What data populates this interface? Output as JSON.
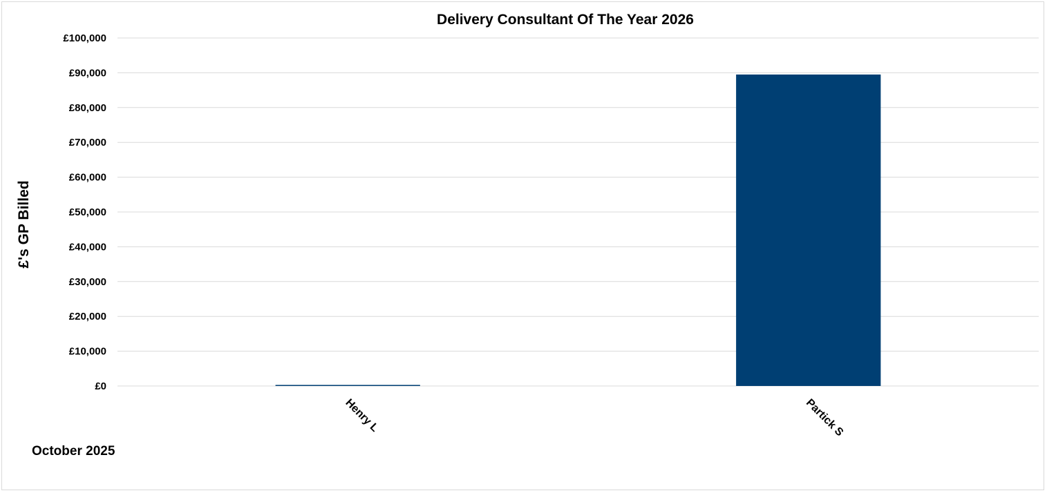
{
  "chart_data": {
    "type": "bar",
    "title": "Delivery Consultant Of The Year 2026",
    "ylabel": "£'s GP Billed",
    "xlabel": "",
    "categories": [
      "Henry L",
      "Partick S"
    ],
    "values": [
      300,
      89500
    ],
    "ylim": [
      0,
      100000
    ],
    "yticks": [
      0,
      10000,
      20000,
      30000,
      40000,
      50000,
      60000,
      70000,
      80000,
      90000,
      100000
    ],
    "ytick_labels": [
      "£0",
      "£10,000",
      "£20,000",
      "£30,000",
      "£40,000",
      "£50,000",
      "£60,000",
      "£70,000",
      "£80,000",
      "£90,000",
      "£100,000"
    ],
    "bar_color": "#003f73",
    "grid": true,
    "gridline_color": "#d9d9d9",
    "legend": "none"
  },
  "footnote": "October 2025"
}
